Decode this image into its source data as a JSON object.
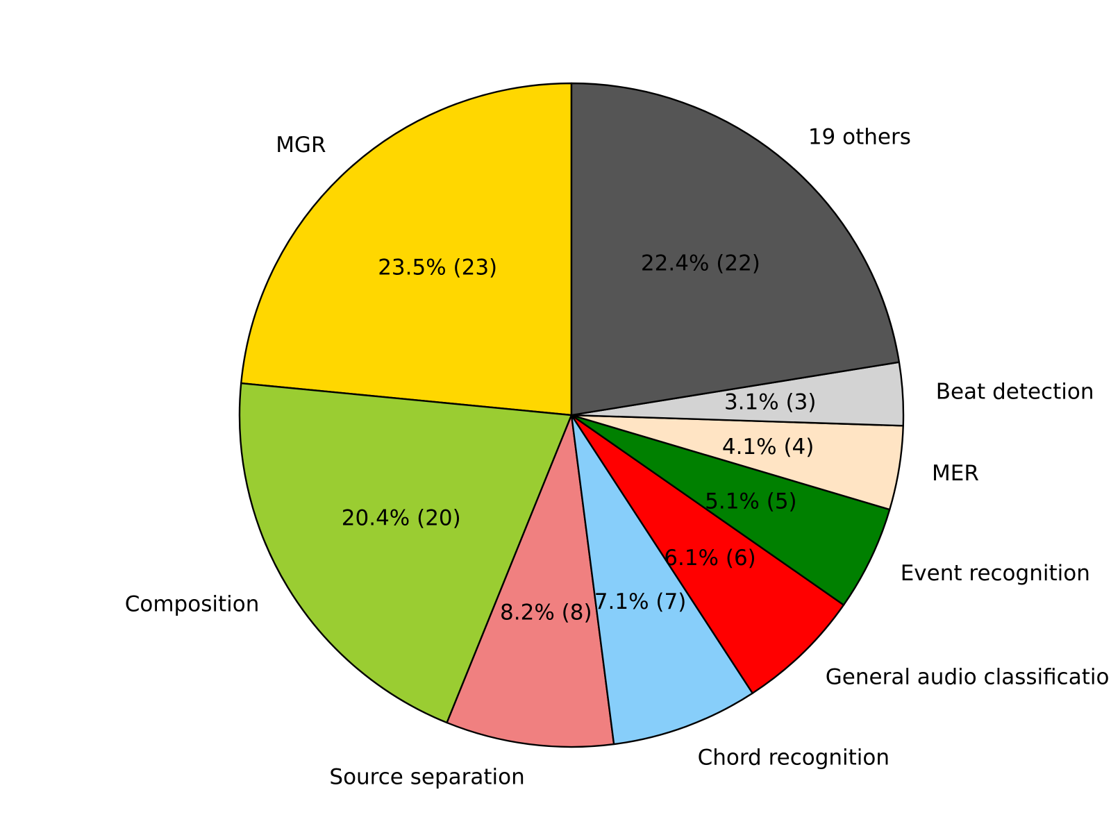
{
  "chart_data": {
    "type": "pie",
    "title": "",
    "start_angle_deg": 90,
    "direction": "counterclockwise",
    "label_format": "{pct}%  ({count})",
    "slices": [
      {
        "label": "MGR",
        "value": 23,
        "percent": "23.5",
        "color": "#FFD700"
      },
      {
        "label": "Composition",
        "value": 20,
        "percent": "20.4",
        "color": "#9ACD32"
      },
      {
        "label": "Source separation",
        "value": 8,
        "percent": "8.2",
        "color": "#F08080"
      },
      {
        "label": "Chord recognition",
        "value": 7,
        "percent": "7.1",
        "color": "#87CEFA"
      },
      {
        "label": "General audio classification",
        "value": 6,
        "percent": "6.1",
        "color": "#FF0000"
      },
      {
        "label": "Event recognition",
        "value": 5,
        "percent": "5.1",
        "color": "#008000"
      },
      {
        "label": "MER",
        "value": 4,
        "percent": "4.1",
        "color": "#FFE4C4"
      },
      {
        "label": "Beat detection",
        "value": 3,
        "percent": "3.1",
        "color": "#D3D3D3"
      },
      {
        "label": "19 others",
        "value": 22,
        "percent": "22.4",
        "color": "#555555"
      }
    ]
  }
}
